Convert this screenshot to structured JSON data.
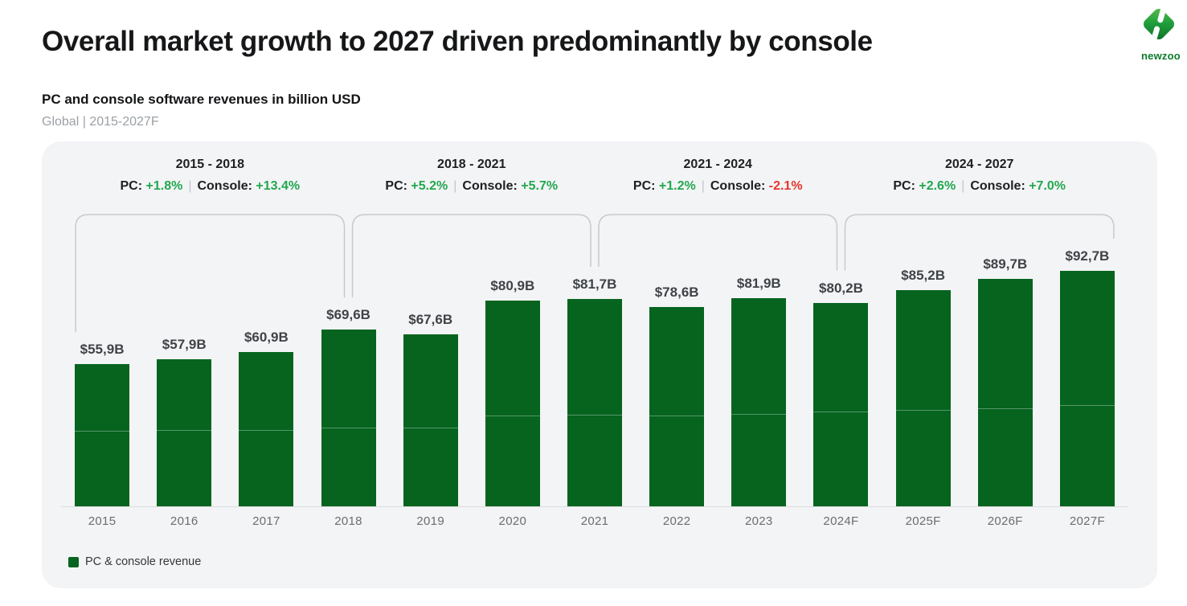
{
  "page": {
    "title": "Overall market growth to 2027 driven predominantly by console",
    "subtitle": "PC and console software revenues in billion USD",
    "meta": "Global | 2015-2027F",
    "brand": "newzoo"
  },
  "colors": {
    "bar": "#06641f",
    "positive": "#23a74f",
    "negative": "#e6342e",
    "card_bg": "#f3f4f6",
    "bracket": "#c8cacc",
    "axis": "#dadcde",
    "value_label": "#3f4347",
    "tick_label": "#686e72"
  },
  "legend": {
    "label": "PC & console revenue"
  },
  "chart_data": {
    "type": "bar",
    "title": "PC and console software revenues in billion USD",
    "unit": "billion USD",
    "categories": [
      "2015",
      "2016",
      "2017",
      "2018",
      "2019",
      "2020",
      "2021",
      "2022",
      "2023",
      "2024F",
      "2025F",
      "2026F",
      "2027F"
    ],
    "values": [
      55.9,
      57.9,
      60.9,
      69.6,
      67.6,
      80.9,
      81.7,
      78.6,
      81.9,
      80.2,
      85.2,
      89.7,
      92.7
    ],
    "value_labels": [
      "$55,9B",
      "$57,9B",
      "$60,9B",
      "$69,6B",
      "$67,6B",
      "$80,9B",
      "$81,7B",
      "$78,6B",
      "$81,9B",
      "$80,2B",
      "$85,2B",
      "$89,7B",
      "$92,7B"
    ],
    "segment_divider_values_estimate": [
      29.3,
      29.6,
      29.9,
      30.6,
      30.6,
      35.3,
      35.9,
      35.3,
      36.2,
      36.9,
      37.5,
      38.4,
      39.4
    ],
    "ylim": [
      0,
      100
    ],
    "grid": false,
    "legend_position": "bottom-left",
    "period_prefix_pc": "PC:",
    "period_prefix_console": "Console:",
    "period_separator": "|",
    "periods": [
      {
        "label": "2015 - 2018",
        "from_index": 0,
        "to_index": 3,
        "pc": "+1.8%",
        "console": "+13.4%",
        "pc_positive": true,
        "console_positive": true
      },
      {
        "label": "2018 - 2021",
        "from_index": 3,
        "to_index": 6,
        "pc": "+5.2%",
        "console": "+5.7%",
        "pc_positive": true,
        "console_positive": true
      },
      {
        "label": "2021 - 2024",
        "from_index": 6,
        "to_index": 9,
        "pc": "+1.2%",
        "console": "-2.1%",
        "pc_positive": true,
        "console_positive": false
      },
      {
        "label": "2024 - 2027",
        "from_index": 9,
        "to_index": 12,
        "pc": "+2.6%",
        "console": "+7.0%",
        "pc_positive": true,
        "console_positive": true
      }
    ]
  }
}
